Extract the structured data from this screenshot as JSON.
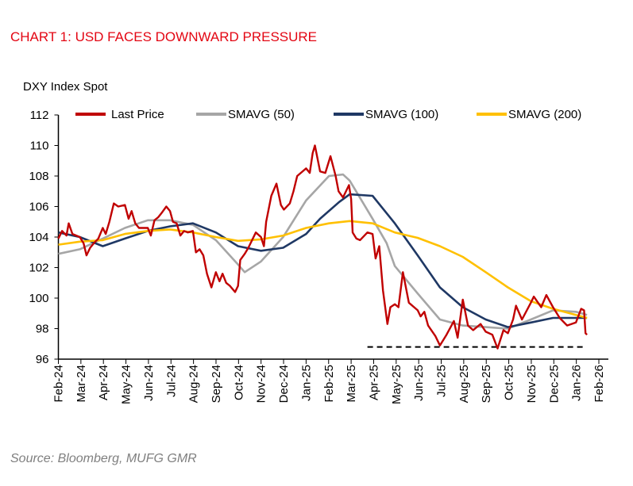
{
  "chart_data": {
    "type": "line",
    "title": "CHART 1: USD FACES DOWNWARD PRESSURE",
    "ylabel": "DXY Index Spot",
    "source": "Source: Bloomberg, MUFG GMR",
    "ylim": [
      96,
      112
    ],
    "yticks": [
      96,
      98,
      100,
      102,
      104,
      106,
      108,
      110,
      112
    ],
    "xlim": [
      "2024-02-01",
      "2026-02-01"
    ],
    "xticks": [
      "Feb-24",
      "Mar-24",
      "Apr-24",
      "May-24",
      "Jun-24",
      "Jul-24",
      "Aug-24",
      "Sep-24",
      "Oct-24",
      "Nov-24",
      "Dec-24",
      "Jan-25",
      "Feb-25",
      "Mar-25",
      "Apr-25",
      "May-25",
      "Jun-25",
      "Jul-25",
      "Aug-25",
      "Sep-25",
      "Oct-25",
      "Nov-25",
      "Dec-25",
      "Jan-26",
      "Feb-26"
    ],
    "grid": false,
    "legend_position": "top",
    "reference_line": {
      "style": "dashed",
      "color": "#000000",
      "value": 96.8,
      "from": "2025-03-25",
      "to": "2026-01-14"
    },
    "series": [
      {
        "name": "Last Price",
        "color": "#c00000",
        "points": [
          [
            "2024-02-01",
            103.9
          ],
          [
            "2024-02-06",
            104.4
          ],
          [
            "2024-02-12",
            104.1
          ],
          [
            "2024-02-15",
            104.9
          ],
          [
            "2024-02-20",
            104.2
          ],
          [
            "2024-03-01",
            104.0
          ],
          [
            "2024-03-06",
            103.6
          ],
          [
            "2024-03-10",
            102.8
          ],
          [
            "2024-03-15",
            103.3
          ],
          [
            "2024-03-20",
            103.6
          ],
          [
            "2024-03-26",
            103.9
          ],
          [
            "2024-04-01",
            104.6
          ],
          [
            "2024-04-05",
            104.2
          ],
          [
            "2024-04-10",
            105.0
          ],
          [
            "2024-04-16",
            106.2
          ],
          [
            "2024-04-22",
            106.0
          ],
          [
            "2024-05-01",
            106.1
          ],
          [
            "2024-05-06",
            105.2
          ],
          [
            "2024-05-10",
            105.7
          ],
          [
            "2024-05-15",
            104.9
          ],
          [
            "2024-05-20",
            104.6
          ],
          [
            "2024-06-01",
            104.6
          ],
          [
            "2024-06-05",
            104.1
          ],
          [
            "2024-06-10",
            105.1
          ],
          [
            "2024-06-15",
            105.3
          ],
          [
            "2024-06-20",
            105.6
          ],
          [
            "2024-06-26",
            106.0
          ],
          [
            "2024-07-01",
            105.7
          ],
          [
            "2024-07-05",
            105.0
          ],
          [
            "2024-07-10",
            104.9
          ],
          [
            "2024-07-15",
            104.1
          ],
          [
            "2024-07-20",
            104.4
          ],
          [
            "2024-07-25",
            104.3
          ],
          [
            "2024-08-01",
            104.4
          ],
          [
            "2024-08-05",
            103.0
          ],
          [
            "2024-08-10",
            103.2
          ],
          [
            "2024-08-15",
            102.8
          ],
          [
            "2024-08-20",
            101.6
          ],
          [
            "2024-08-26",
            100.7
          ],
          [
            "2024-09-01",
            101.7
          ],
          [
            "2024-09-06",
            101.1
          ],
          [
            "2024-09-10",
            101.6
          ],
          [
            "2024-09-15",
            101.0
          ],
          [
            "2024-09-20",
            100.8
          ],
          [
            "2024-09-27",
            100.4
          ],
          [
            "2024-10-01",
            100.8
          ],
          [
            "2024-10-04",
            102.5
          ],
          [
            "2024-10-10",
            102.9
          ],
          [
            "2024-10-15",
            103.3
          ],
          [
            "2024-10-20",
            103.8
          ],
          [
            "2024-10-25",
            104.3
          ],
          [
            "2024-11-01",
            104.0
          ],
          [
            "2024-11-05",
            103.4
          ],
          [
            "2024-11-08",
            105.0
          ],
          [
            "2024-11-15",
            106.7
          ],
          [
            "2024-11-22",
            107.5
          ],
          [
            "2024-11-28",
            106.1
          ],
          [
            "2024-12-02",
            105.8
          ],
          [
            "2024-12-10",
            106.2
          ],
          [
            "2024-12-15",
            107.0
          ],
          [
            "2024-12-20",
            108.0
          ],
          [
            "2025-01-01",
            108.5
          ],
          [
            "2025-01-06",
            108.2
          ],
          [
            "2025-01-10",
            109.5
          ],
          [
            "2025-01-13",
            110.0
          ],
          [
            "2025-01-20",
            108.3
          ],
          [
            "2025-01-27",
            108.2
          ],
          [
            "2025-02-03",
            109.3
          ],
          [
            "2025-02-10",
            108.0
          ],
          [
            "2025-02-14",
            107.0
          ],
          [
            "2025-02-20",
            106.6
          ],
          [
            "2025-02-28",
            107.4
          ],
          [
            "2025-03-03",
            106.5
          ],
          [
            "2025-03-05",
            104.3
          ],
          [
            "2025-03-10",
            103.9
          ],
          [
            "2025-03-15",
            103.8
          ],
          [
            "2025-03-25",
            104.3
          ],
          [
            "2025-04-01",
            104.2
          ],
          [
            "2025-04-05",
            102.6
          ],
          [
            "2025-04-10",
            103.4
          ],
          [
            "2025-04-15",
            100.5
          ],
          [
            "2025-04-21",
            98.3
          ],
          [
            "2025-04-25",
            99.4
          ],
          [
            "2025-05-01",
            99.6
          ],
          [
            "2025-05-06",
            99.4
          ],
          [
            "2025-05-12",
            101.7
          ],
          [
            "2025-05-20",
            99.7
          ],
          [
            "2025-06-01",
            99.2
          ],
          [
            "2025-06-05",
            98.8
          ],
          [
            "2025-06-10",
            99.1
          ],
          [
            "2025-06-15",
            98.2
          ],
          [
            "2025-06-25",
            97.5
          ],
          [
            "2025-07-01",
            96.9
          ],
          [
            "2025-07-10",
            97.6
          ],
          [
            "2025-07-20",
            98.5
          ],
          [
            "2025-07-25",
            97.4
          ],
          [
            "2025-08-01",
            99.9
          ],
          [
            "2025-08-08",
            98.2
          ],
          [
            "2025-08-15",
            97.9
          ],
          [
            "2025-08-25",
            98.3
          ],
          [
            "2025-09-01",
            97.8
          ],
          [
            "2025-09-10",
            97.6
          ],
          [
            "2025-09-17",
            96.7
          ],
          [
            "2025-09-25",
            97.9
          ],
          [
            "2025-10-01",
            97.7
          ],
          [
            "2025-10-08",
            98.6
          ],
          [
            "2025-10-12",
            99.5
          ],
          [
            "2025-10-20",
            98.6
          ],
          [
            "2025-11-01",
            99.7
          ],
          [
            "2025-11-05",
            100.1
          ],
          [
            "2025-11-15",
            99.4
          ],
          [
            "2025-11-22",
            100.2
          ],
          [
            "2025-12-01",
            99.4
          ],
          [
            "2025-12-10",
            98.7
          ],
          [
            "2025-12-20",
            98.2
          ],
          [
            "2026-01-01",
            98.4
          ],
          [
            "2026-01-08",
            99.3
          ],
          [
            "2026-01-12",
            99.2
          ],
          [
            "2026-01-14",
            97.7
          ],
          [
            "2026-01-16",
            97.6
          ]
        ]
      },
      {
        "name": "SMAVG (50)",
        "color": "#a6a6a6",
        "points": [
          [
            "2024-02-01",
            102.9
          ],
          [
            "2024-03-01",
            103.2
          ],
          [
            "2024-04-01",
            103.9
          ],
          [
            "2024-05-01",
            104.6
          ],
          [
            "2024-06-01",
            105.1
          ],
          [
            "2024-07-01",
            105.1
          ],
          [
            "2024-08-01",
            104.8
          ],
          [
            "2024-09-01",
            103.8
          ],
          [
            "2024-10-01",
            102.2
          ],
          [
            "2024-10-10",
            101.7
          ],
          [
            "2024-11-01",
            102.4
          ],
          [
            "2024-12-01",
            104.0
          ],
          [
            "2025-01-01",
            106.4
          ],
          [
            "2025-02-01",
            108.0
          ],
          [
            "2025-02-20",
            108.1
          ],
          [
            "2025-03-01",
            107.7
          ],
          [
            "2025-04-01",
            105.2
          ],
          [
            "2025-04-20",
            103.6
          ],
          [
            "2025-05-01",
            102.1
          ],
          [
            "2025-06-01",
            100.3
          ],
          [
            "2025-07-01",
            98.6
          ],
          [
            "2025-08-01",
            98.2
          ],
          [
            "2025-09-01",
            98.1
          ],
          [
            "2025-10-01",
            98.0
          ],
          [
            "2025-11-01",
            98.6
          ],
          [
            "2025-12-01",
            99.2
          ],
          [
            "2026-01-01",
            99.1
          ],
          [
            "2026-01-16",
            98.9
          ]
        ]
      },
      {
        "name": "SMAVG (100)",
        "color": "#1f3864",
        "points": [
          [
            "2024-02-01",
            104.3
          ],
          [
            "2024-03-01",
            104.0
          ],
          [
            "2024-04-01",
            103.4
          ],
          [
            "2024-05-01",
            103.9
          ],
          [
            "2024-06-01",
            104.4
          ],
          [
            "2024-07-01",
            104.7
          ],
          [
            "2024-08-01",
            104.9
          ],
          [
            "2024-09-01",
            104.3
          ],
          [
            "2024-10-01",
            103.4
          ],
          [
            "2024-11-01",
            103.1
          ],
          [
            "2024-12-01",
            103.3
          ],
          [
            "2025-01-01",
            104.2
          ],
          [
            "2025-01-20",
            105.2
          ],
          [
            "2025-02-15",
            106.3
          ],
          [
            "2025-03-01",
            106.8
          ],
          [
            "2025-04-01",
            106.7
          ],
          [
            "2025-05-01",
            104.9
          ],
          [
            "2025-06-01",
            102.8
          ],
          [
            "2025-07-01",
            100.7
          ],
          [
            "2025-08-01",
            99.4
          ],
          [
            "2025-09-01",
            98.6
          ],
          [
            "2025-10-01",
            98.1
          ],
          [
            "2025-11-01",
            98.4
          ],
          [
            "2025-12-01",
            98.7
          ],
          [
            "2026-01-01",
            98.7
          ],
          [
            "2026-01-16",
            98.7
          ]
        ]
      },
      {
        "name": "SMAVG (200)",
        "color": "#ffc000",
        "points": [
          [
            "2024-02-01",
            103.5
          ],
          [
            "2024-03-01",
            103.7
          ],
          [
            "2024-04-01",
            103.8
          ],
          [
            "2024-05-01",
            104.2
          ],
          [
            "2024-06-01",
            104.4
          ],
          [
            "2024-07-01",
            104.5
          ],
          [
            "2024-08-01",
            104.3
          ],
          [
            "2024-09-01",
            104.0
          ],
          [
            "2024-10-01",
            103.75
          ],
          [
            "2024-11-01",
            103.85
          ],
          [
            "2024-12-01",
            104.1
          ],
          [
            "2025-01-01",
            104.6
          ],
          [
            "2025-02-01",
            104.9
          ],
          [
            "2025-03-01",
            105.05
          ],
          [
            "2025-04-01",
            104.9
          ],
          [
            "2025-05-01",
            104.3
          ],
          [
            "2025-06-01",
            103.95
          ],
          [
            "2025-07-01",
            103.4
          ],
          [
            "2025-08-01",
            102.7
          ],
          [
            "2025-09-01",
            101.7
          ],
          [
            "2025-10-01",
            100.7
          ],
          [
            "2025-11-01",
            99.8
          ],
          [
            "2025-12-01",
            99.3
          ],
          [
            "2026-01-01",
            98.9
          ],
          [
            "2026-01-16",
            98.7
          ]
        ]
      }
    ]
  }
}
